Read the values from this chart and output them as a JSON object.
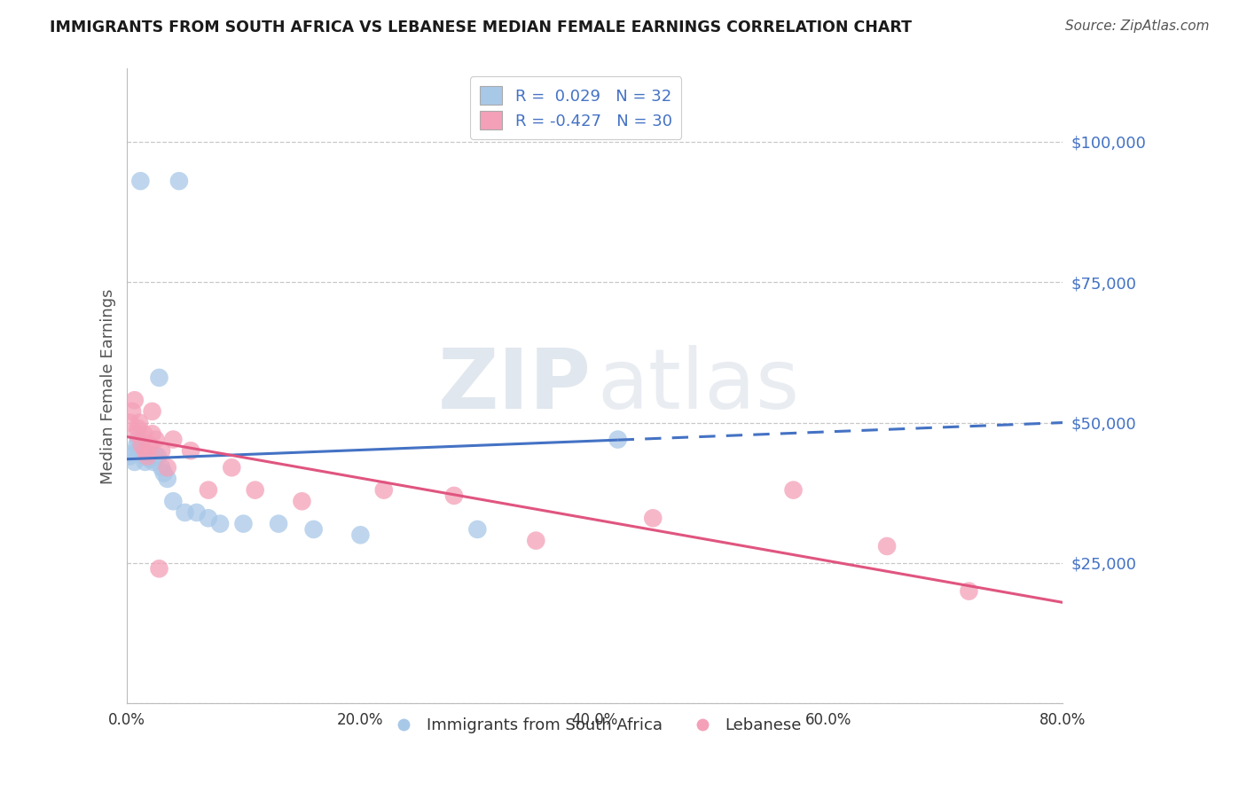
{
  "title": "IMMIGRANTS FROM SOUTH AFRICA VS LEBANESE MEDIAN FEMALE EARNINGS CORRELATION CHART",
  "source": "Source: ZipAtlas.com",
  "ylabel": "Median Female Earnings",
  "xlabel_ticks": [
    "0.0%",
    "20.0%",
    "40.0%",
    "60.0%",
    "80.0%"
  ],
  "xlabel_vals": [
    0.0,
    20.0,
    40.0,
    60.0,
    80.0
  ],
  "ytick_vals": [
    0,
    25000,
    50000,
    75000,
    100000
  ],
  "ytick_labels": [
    "",
    "$25,000",
    "$50,000",
    "$75,000",
    "$100,000"
  ],
  "xlim": [
    0.0,
    80.0
  ],
  "ylim": [
    13000,
    113000
  ],
  "R_blue": 0.029,
  "N_blue": 32,
  "R_pink": -0.427,
  "N_pink": 30,
  "color_blue": "#a8c8e8",
  "color_pink": "#f4a0b8",
  "line_blue": "#4472c4",
  "line_pink": "#e05580",
  "legend_blue": "Immigrants from South Africa",
  "legend_pink": "Lebanese",
  "watermark_zip": "ZIP",
  "watermark_atlas": "atlas",
  "blue_x": [
    1.2,
    2.8,
    4.5,
    0.3,
    0.5,
    0.7,
    0.9,
    1.0,
    1.1,
    1.3,
    1.5,
    1.6,
    1.8,
    2.0,
    2.1,
    2.3,
    2.5,
    2.7,
    3.0,
    3.2,
    3.5,
    4.0,
    5.0,
    6.0,
    7.0,
    8.0,
    10.0,
    13.0,
    16.0,
    20.0,
    30.0,
    42.0
  ],
  "blue_y": [
    93000,
    58000,
    93000,
    44000,
    44500,
    43000,
    46000,
    47000,
    45000,
    45500,
    44000,
    43000,
    44000,
    43500,
    44000,
    43000,
    44000,
    44000,
    42000,
    41000,
    40000,
    36000,
    34000,
    34000,
    33000,
    32000,
    32000,
    32000,
    31000,
    30000,
    31000,
    47000
  ],
  "pink_x": [
    0.3,
    0.5,
    0.7,
    0.9,
    1.0,
    1.1,
    1.3,
    1.5,
    1.6,
    1.8,
    2.0,
    2.2,
    2.5,
    2.8,
    3.0,
    3.5,
    4.0,
    5.5,
    7.0,
    9.0,
    11.0,
    15.0,
    22.0,
    28.0,
    35.0,
    45.0,
    57.0,
    65.0,
    72.0,
    2.2
  ],
  "pink_y": [
    50000,
    52000,
    54000,
    48000,
    49000,
    50000,
    46000,
    48000,
    45000,
    44000,
    46000,
    48000,
    47000,
    24000,
    45000,
    42000,
    47000,
    45000,
    38000,
    42000,
    38000,
    36000,
    38000,
    37000,
    29000,
    33000,
    38000,
    28000,
    20000,
    52000
  ],
  "blue_line_x0": 0.0,
  "blue_line_y0": 43500,
  "blue_line_x1": 80.0,
  "blue_line_y1": 50000,
  "blue_solid_end": 42.0,
  "pink_line_x0": 0.0,
  "pink_line_y0": 47500,
  "pink_line_x1": 80.0,
  "pink_line_y1": 18000
}
